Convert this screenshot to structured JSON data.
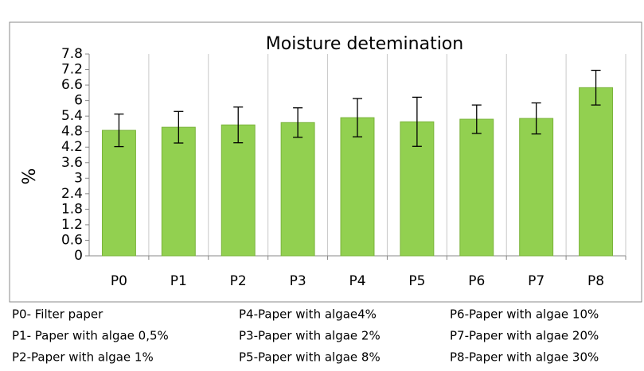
{
  "chart_data": {
    "type": "bar",
    "title": "Moisture detemination",
    "y_label": "%",
    "categories": [
      "P0",
      "P1",
      "P2",
      "P3",
      "P4",
      "P5",
      "P6",
      "P7",
      "P8"
    ],
    "values": [
      4.85,
      4.97,
      5.06,
      5.15,
      5.34,
      5.18,
      5.28,
      5.31,
      6.5
    ],
    "errors": [
      0.63,
      0.61,
      0.69,
      0.57,
      0.74,
      0.95,
      0.55,
      0.6,
      0.67
    ],
    "color": "#92d050",
    "ylim": [
      0,
      7.8
    ],
    "yticks": [
      0,
      0.6,
      1.2,
      1.8,
      2.4,
      3,
      3.6,
      4.2,
      4.8,
      5.4,
      6,
      6.6,
      7.2,
      7.8
    ],
    "grid": "x"
  },
  "notes": [
    [
      "P0- Filter paper",
      "P4-Paper with algae4%",
      "P6-Paper with algae 10%"
    ],
    [
      "P1- Paper with algae 0,5%",
      "P3-Paper with algae 2%",
      "P7-Paper with algae 20%"
    ],
    [
      "P2-Paper with algae 1%",
      "P5-Paper with algae 8%",
      "P8-Paper with algae 30%"
    ]
  ]
}
